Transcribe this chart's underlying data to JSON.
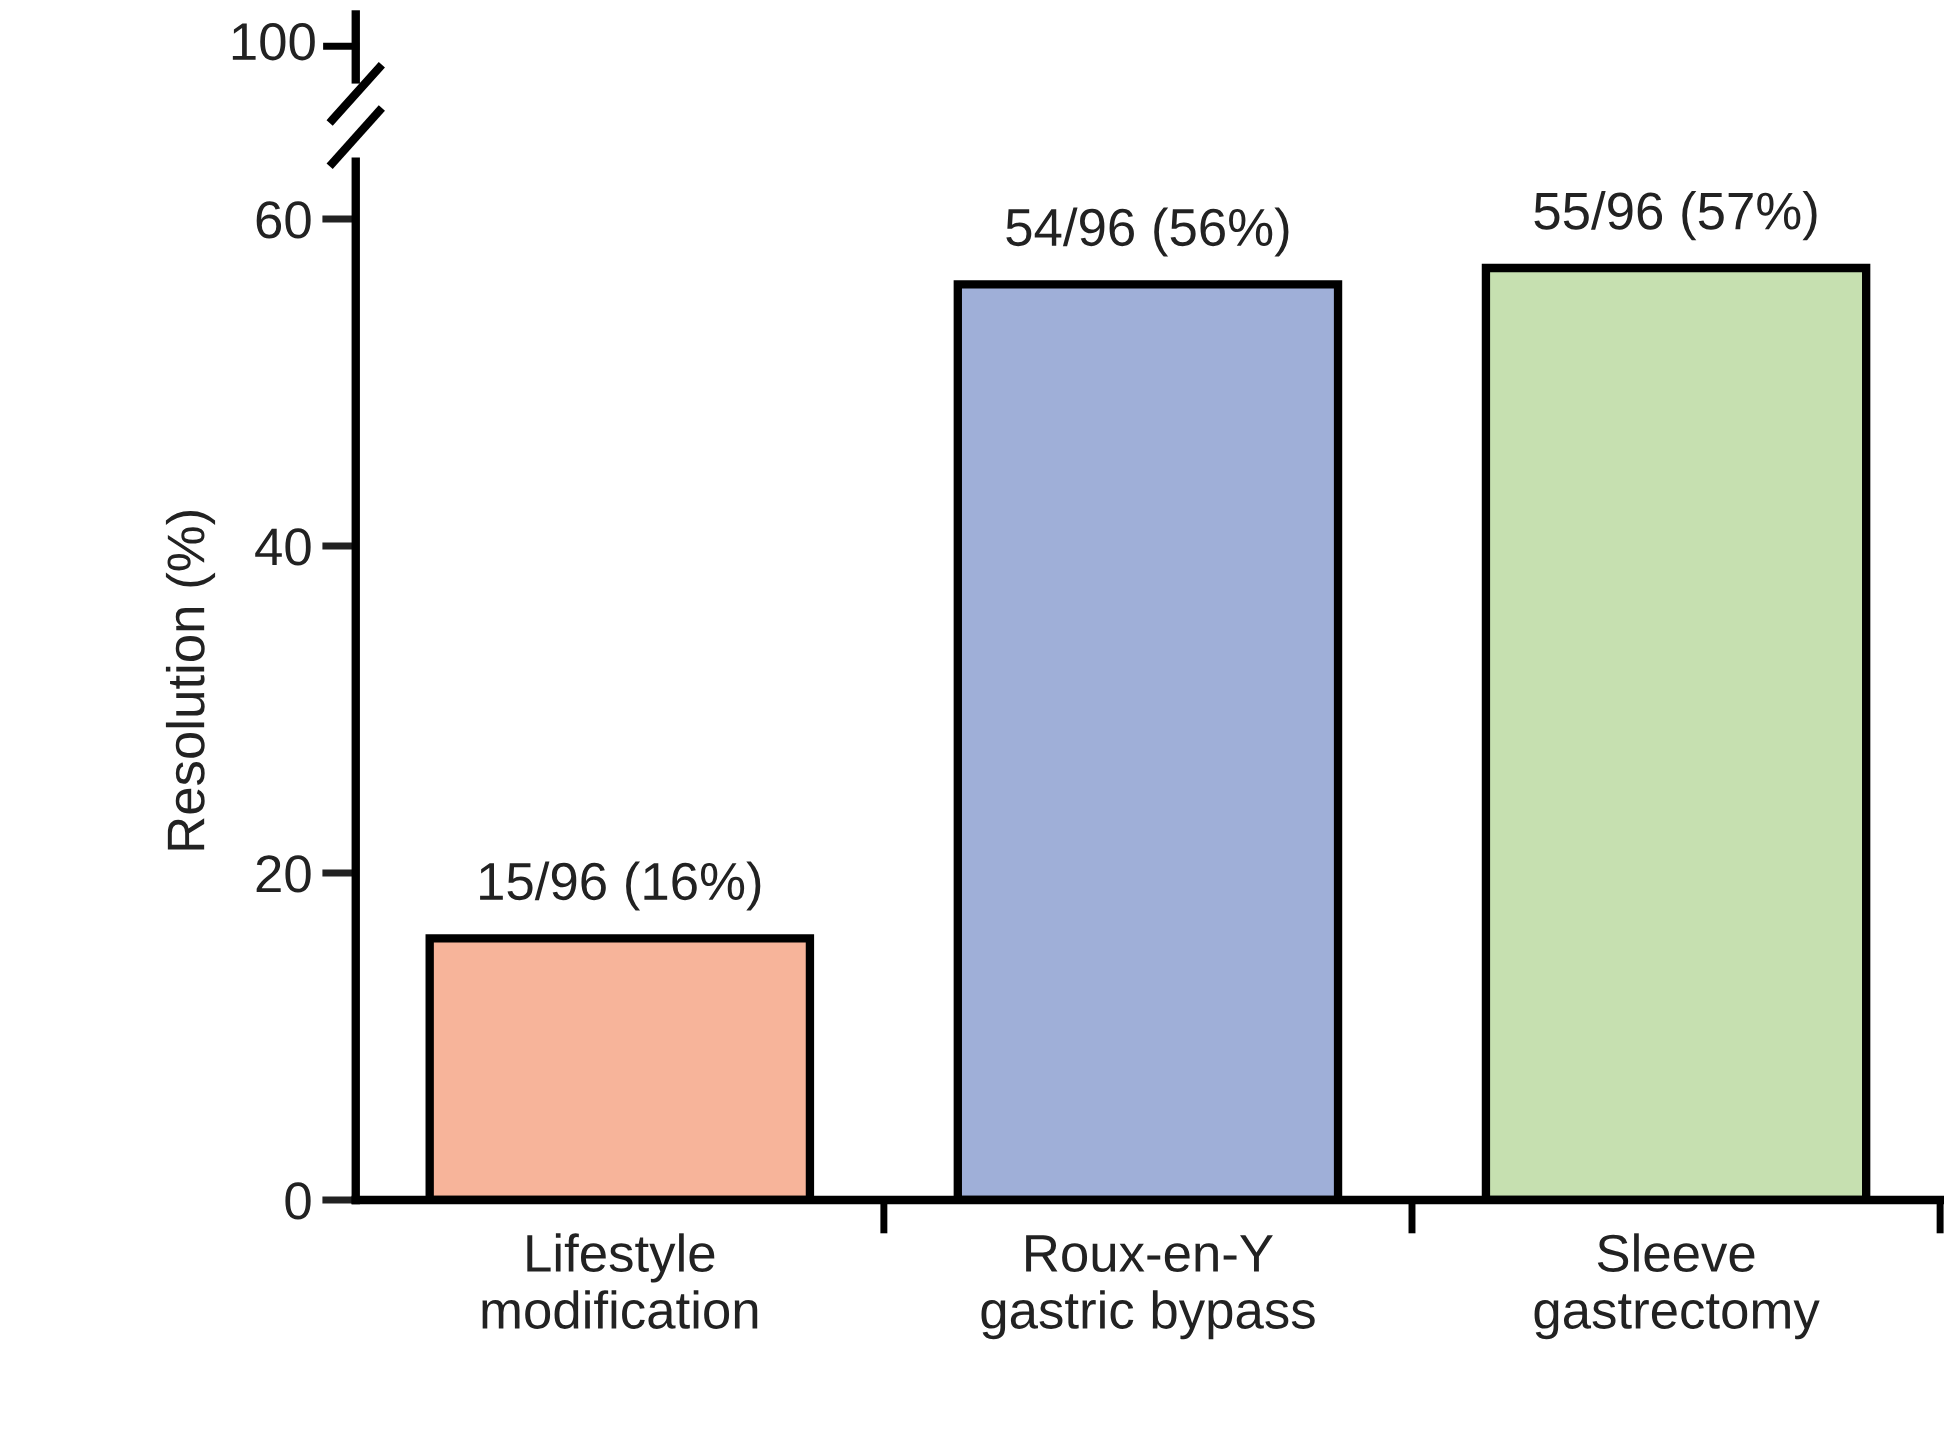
{
  "chart_data": {
    "type": "bar",
    "ylabel": "Resolution (%)",
    "categories": [
      "Lifestyle\nmodification",
      "Roux-en-Y\ngastric bypass",
      "Sleeve\ngastrectomy"
    ],
    "values": [
      16,
      56,
      57
    ],
    "colors": [
      "#f7b49a",
      "#9fafd8",
      "#c6e0b0"
    ],
    "value_labels": [
      "15/96 (16%)",
      "54/96 (56%)",
      "55/96 (57%)"
    ],
    "ylim": [
      0,
      63.5
    ],
    "yticks": [
      0,
      20,
      40,
      60
    ],
    "grid": false,
    "annotations": [
      "100"
    ]
  }
}
